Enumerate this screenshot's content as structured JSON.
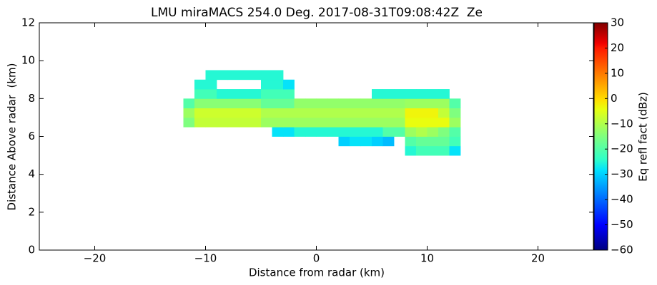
{
  "chart_data": {
    "type": "heatmap",
    "title": "LMU miraMACS 254.0 Deg. 2017-08-31T09:08:42Z  Ze",
    "x_label": "Distance from radar (km)",
    "y_label": "Distance Above radar  (km)",
    "colorbar_label": "Eq refl fact (dBz)",
    "xlim": [
      -25,
      25
    ],
    "ylim": [
      0,
      12
    ],
    "zlim": [
      -60,
      30
    ],
    "xticks": [
      {
        "value": -20,
        "label": "−20"
      },
      {
        "value": -10,
        "label": "−10"
      },
      0,
      10,
      20
    ],
    "yticks": [
      0,
      2,
      4,
      6,
      8,
      10,
      12
    ],
    "zticks": [
      {
        "value": -60,
        "label": "−60"
      },
      {
        "value": -50,
        "label": "−50"
      },
      {
        "value": -40,
        "label": "−40"
      },
      {
        "value": -30,
        "label": "−30"
      },
      {
        "value": -20,
        "label": "−20"
      },
      {
        "value": -10,
        "label": "−10"
      },
      0,
      10,
      20,
      30
    ],
    "colorscale": [
      [
        0,
        "#000080"
      ],
      [
        0.11,
        "#0000ff"
      ],
      [
        0.35,
        "#00e0ff"
      ],
      [
        0.4,
        "#30ffc8"
      ],
      [
        0.5,
        "#7fff7f"
      ],
      [
        0.62,
        "#e8ff10"
      ],
      [
        0.66,
        "#ffe000"
      ],
      [
        0.89,
        "#ff1800"
      ],
      [
        0.91,
        "#f00000"
      ],
      [
        1,
        "#800000"
      ]
    ],
    "x": [
      -12,
      -11,
      -10,
      -9,
      -8,
      -7,
      -6,
      -5,
      -4,
      -3,
      -2,
      -1,
      0,
      1,
      2,
      3,
      4,
      5,
      6,
      7,
      8,
      9,
      10,
      11,
      12,
      13
    ],
    "y": [
      5,
      5.5,
      6,
      6.5,
      7,
      7.5,
      8,
      8.5,
      9,
      9.5
    ],
    "values": [
      [
        null,
        null,
        null,
        null,
        null,
        null,
        null,
        null,
        null,
        null,
        null,
        null,
        null,
        null,
        null,
        null,
        null,
        null,
        null,
        null,
        -25,
        -22,
        -22,
        -22,
        -28
      ],
      [
        null,
        null,
        null,
        null,
        null,
        null,
        null,
        null,
        null,
        null,
        null,
        null,
        null,
        null,
        -30,
        -28,
        -28,
        -30,
        -32,
        null,
        -20,
        -18,
        -18,
        -18,
        -22
      ],
      [
        null,
        null,
        null,
        null,
        null,
        null,
        null,
        null,
        -28,
        -28,
        -25,
        -25,
        -25,
        -25,
        -25,
        -25,
        -25,
        -25,
        -20,
        -20,
        -12,
        -10,
        -12,
        -15,
        -20
      ],
      [
        -15,
        -8,
        -8,
        -8,
        -8,
        -8,
        -8,
        -12,
        -12,
        -12,
        -12,
        -12,
        -12,
        -12,
        -12,
        -12,
        -12,
        -12,
        -12,
        -12,
        -4,
        -4,
        -4,
        -4,
        -12
      ],
      [
        -12,
        -7,
        -7,
        -7,
        -7,
        -7,
        -7,
        -10,
        -10,
        -10,
        -10,
        -10,
        -10,
        -10,
        -10,
        -10,
        -10,
        -10,
        -10,
        -10,
        -3,
        -3,
        -3,
        -8,
        -15
      ],
      [
        -20,
        -14,
        -14,
        -14,
        -14,
        -14,
        -14,
        -18,
        -18,
        -18,
        -13,
        -13,
        -13,
        -13,
        -13,
        -13,
        -13,
        -13,
        -13,
        -13,
        -12,
        -12,
        -12,
        -12,
        -20
      ],
      [
        null,
        -22,
        -22,
        -25,
        -25,
        -25,
        -25,
        -22,
        -22,
        -22,
        null,
        null,
        null,
        null,
        null,
        null,
        null,
        -25,
        -25,
        -25,
        -25,
        -25,
        -25,
        -25,
        null
      ],
      [
        null,
        -25,
        -25,
        null,
        null,
        null,
        null,
        -25,
        -25,
        -28,
        null,
        null,
        null,
        null,
        null,
        null,
        null,
        null,
        null,
        null,
        null,
        null,
        null,
        null,
        null
      ],
      [
        null,
        null,
        -25,
        -25,
        -25,
        -25,
        -25,
        -25,
        -25,
        null,
        null,
        null,
        null,
        null,
        null,
        null,
        null,
        null,
        null,
        null,
        null,
        null,
        null,
        null,
        null
      ]
    ]
  }
}
